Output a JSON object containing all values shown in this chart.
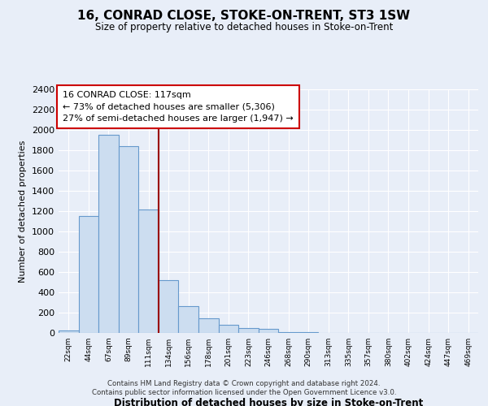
{
  "title": "16, CONRAD CLOSE, STOKE-ON-TRENT, ST3 1SW",
  "subtitle": "Size of property relative to detached houses in Stoke-on-Trent",
  "xlabel": "Distribution of detached houses by size in Stoke-on-Trent",
  "ylabel": "Number of detached properties",
  "bar_labels": [
    "22sqm",
    "44sqm",
    "67sqm",
    "89sqm",
    "111sqm",
    "134sqm",
    "156sqm",
    "178sqm",
    "201sqm",
    "223sqm",
    "246sqm",
    "268sqm",
    "290sqm",
    "313sqm",
    "335sqm",
    "357sqm",
    "380sqm",
    "402sqm",
    "424sqm",
    "447sqm",
    "469sqm"
  ],
  "bar_values": [
    25,
    1150,
    1950,
    1840,
    1220,
    520,
    265,
    148,
    78,
    45,
    38,
    10,
    8,
    2,
    1,
    1,
    0,
    0,
    0,
    0,
    0
  ],
  "bar_fill_color": "#ccddf0",
  "bar_edge_color": "#6699cc",
  "vline_x": 4.5,
  "vline_color": "#990000",
  "ylim": [
    0,
    2400
  ],
  "yticks": [
    0,
    200,
    400,
    600,
    800,
    1000,
    1200,
    1400,
    1600,
    1800,
    2000,
    2200,
    2400
  ],
  "annotation_title": "16 CONRAD CLOSE: 117sqm",
  "annotation_line1": "← 73% of detached houses are smaller (5,306)",
  "annotation_line2": "27% of semi-detached houses are larger (1,947) →",
  "annotation_box_color": "white",
  "annotation_box_edge": "#cc0000",
  "footer_line1": "Contains HM Land Registry data © Crown copyright and database right 2024.",
  "footer_line2": "Contains public sector information licensed under the Open Government Licence v3.0.",
  "background_color": "#e8eef8",
  "grid_color": "#ffffff"
}
